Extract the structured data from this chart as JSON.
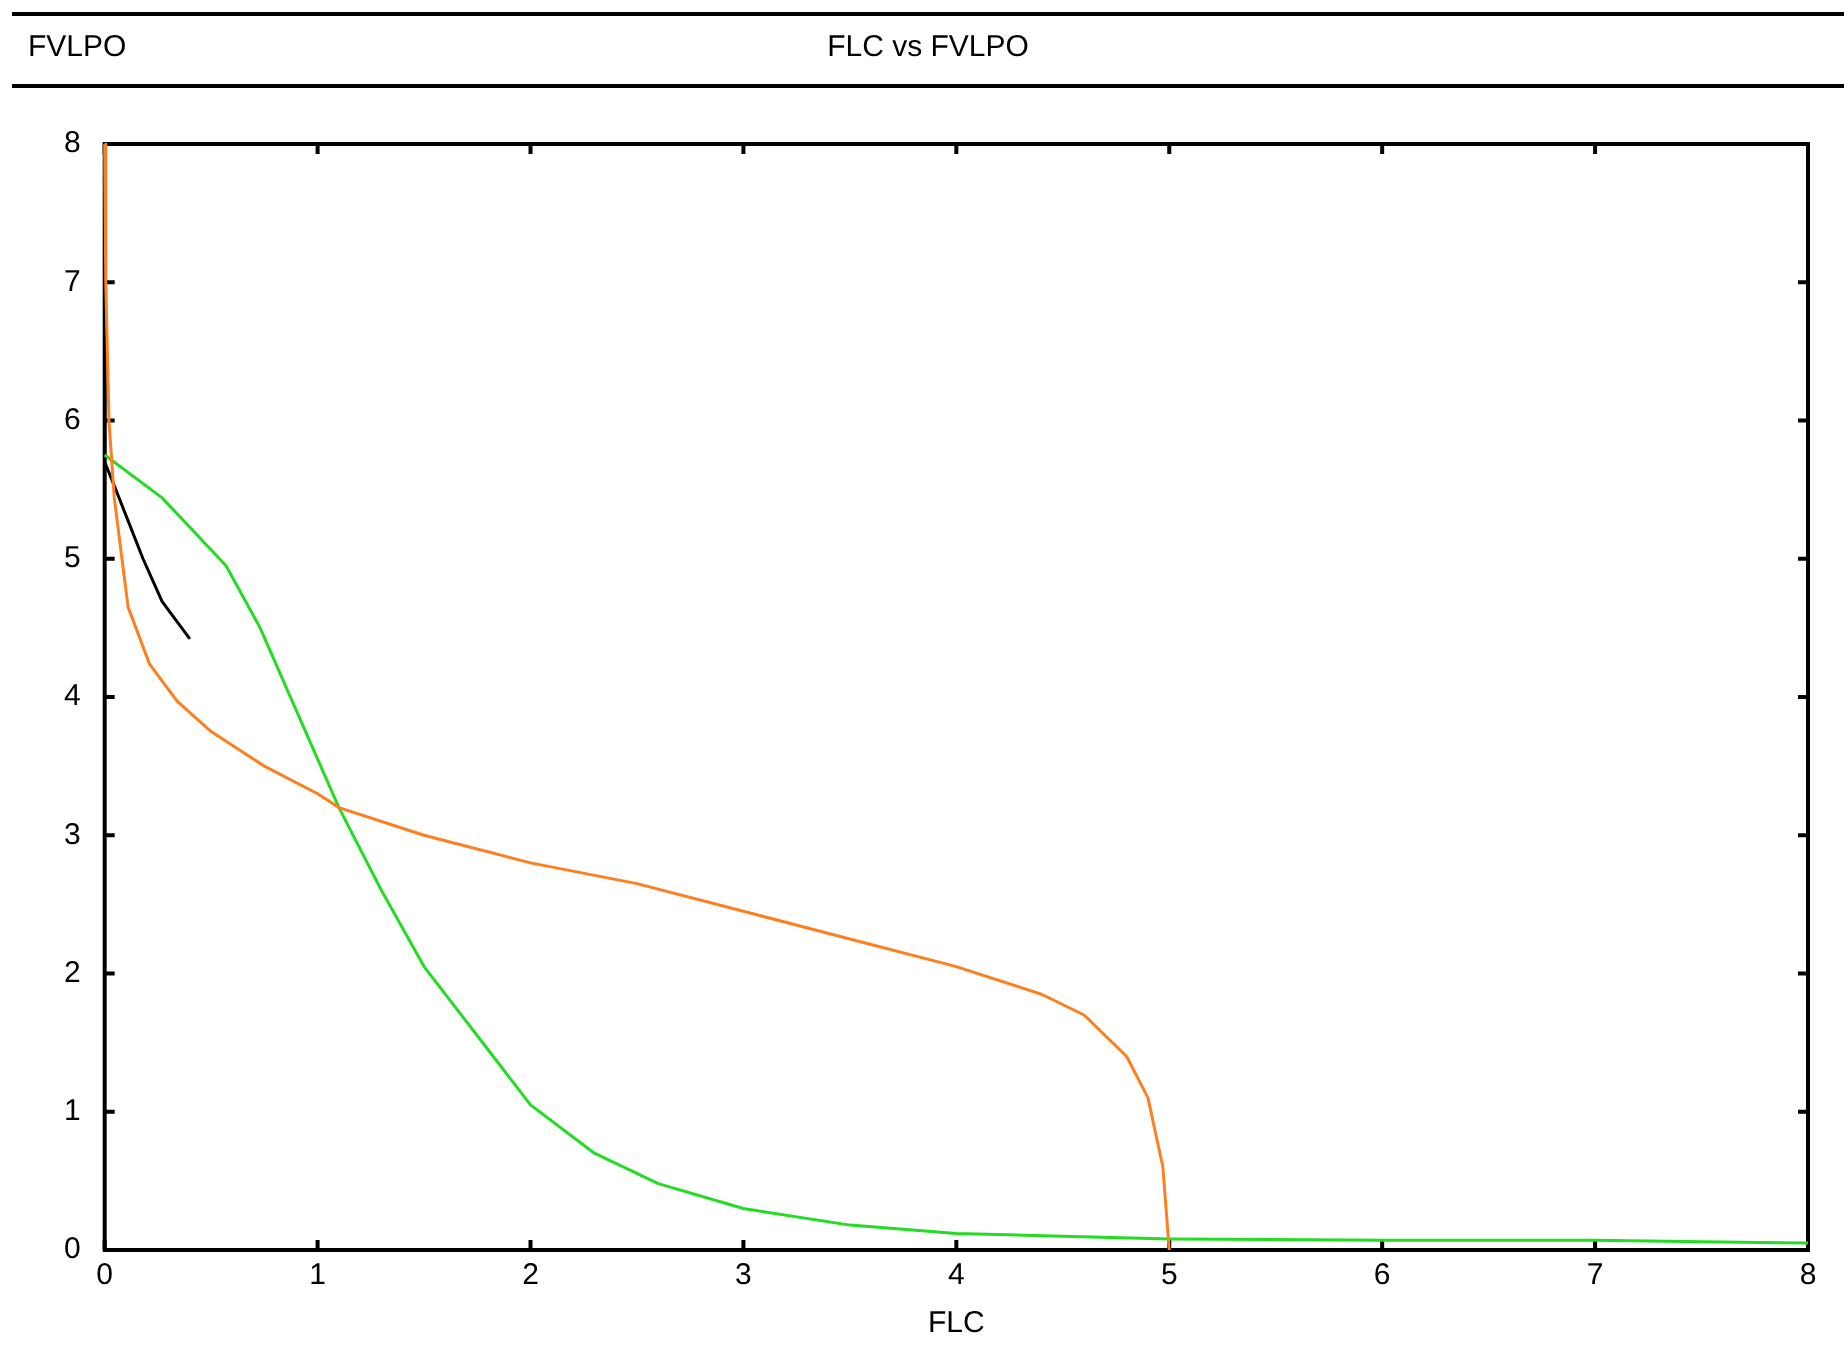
{
  "chart_data": {
    "type": "line",
    "title": "FLC vs FVLPO",
    "xlabel": "FLC",
    "ylabel": "FVLPO",
    "xlim": [
      0,
      8
    ],
    "ylim": [
      0,
      8
    ],
    "xticks": [
      0,
      1,
      2,
      3,
      4,
      5,
      6,
      7,
      8
    ],
    "yticks": [
      0,
      1,
      2,
      3,
      4,
      5,
      6,
      7,
      8
    ],
    "grid": false,
    "legend": false,
    "marker": "none",
    "line_style": "solid",
    "series": [
      {
        "color": "#ff7f1f",
        "x": [
          0,
          0.005,
          0.02,
          0.045,
          0.11,
          0.21,
          0.34,
          0.5,
          0.75,
          1,
          1.1,
          1.5,
          2,
          2.5,
          3,
          3.5,
          4,
          4.4,
          4.6,
          4.8,
          4.9,
          4.97,
          5
        ],
        "values": [
          8,
          7,
          6,
          5.44,
          4.65,
          4.24,
          3.97,
          3.75,
          3.5,
          3.3,
          3.2,
          3.0,
          2.8,
          2.65,
          2.45,
          2.25,
          2.05,
          1.85,
          1.7,
          1.4,
          1.1,
          0.6,
          0
        ]
      },
      {
        "color": "#22dd22",
        "x": [
          0,
          0.27,
          0.57,
          0.73,
          0.875,
          1.1,
          1.3,
          1.5,
          1.8,
          2,
          2.3,
          2.6,
          3,
          3.5,
          4,
          4.5,
          5,
          6,
          7,
          7.5,
          8
        ],
        "values": [
          5.75,
          5.44,
          4.95,
          4.5,
          3.99,
          3.2,
          2.6,
          2.05,
          1.45,
          1.05,
          0.7,
          0.48,
          0.3,
          0.18,
          0.12,
          0.1,
          0.08,
          0.07,
          0.07,
          0.06,
          0.05
        ]
      },
      {
        "color": "#000000",
        "x": [
          0,
          0,
          0.06,
          0.18,
          0.27,
          0.4
        ],
        "values": [
          6.5,
          5.7,
          5.47,
          5.0,
          4.69,
          4.42
        ]
      }
    ]
  }
}
